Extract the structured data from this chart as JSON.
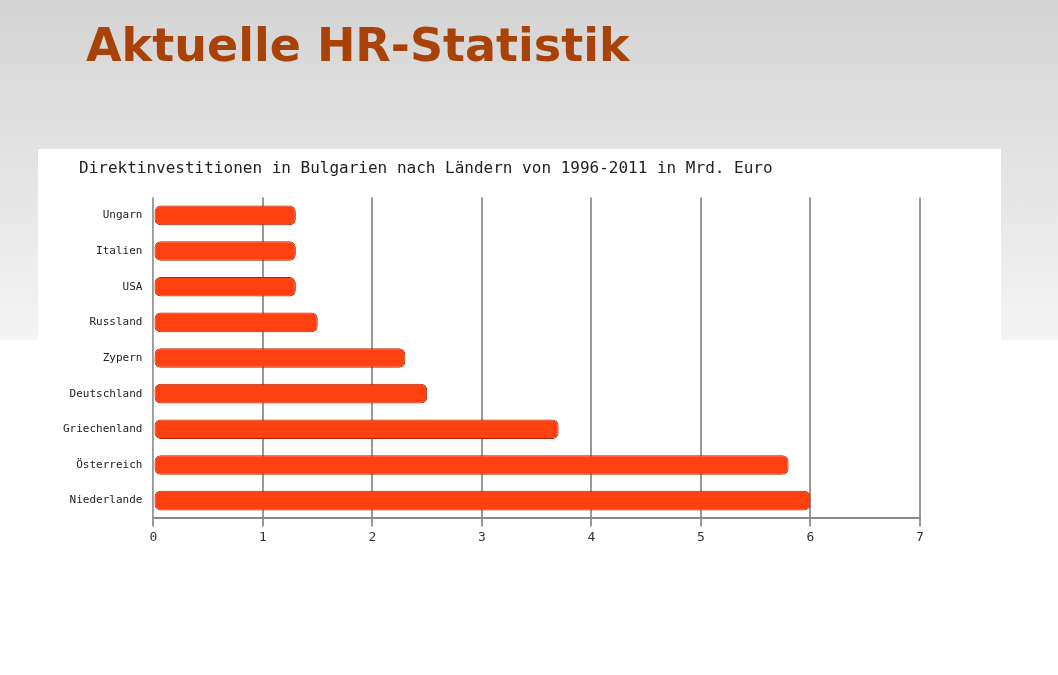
{
  "chart_data": {
    "type": "bar",
    "orientation": "horizontal",
    "title": "Aktuelle HR-Statistik",
    "subtitle": "Direktinvestitionen in Bulgarien nach Ländern von 1996-2011 in Mrd. Euro",
    "categories": [
      "Ungarn",
      "Italien",
      "USA",
      "Russland",
      "Zypern",
      "Deutschland",
      "Griechenland",
      "Österreich",
      "Niederlande"
    ],
    "values": [
      1.3,
      1.3,
      1.3,
      1.5,
      2.3,
      2.5,
      3.7,
      5.8,
      6.0
    ],
    "color": "#ff4010",
    "xlim": [
      0,
      7
    ],
    "xticks": [
      0,
      1,
      2,
      3,
      4,
      5,
      6,
      7
    ],
    "grid": "x",
    "legend": false
  }
}
